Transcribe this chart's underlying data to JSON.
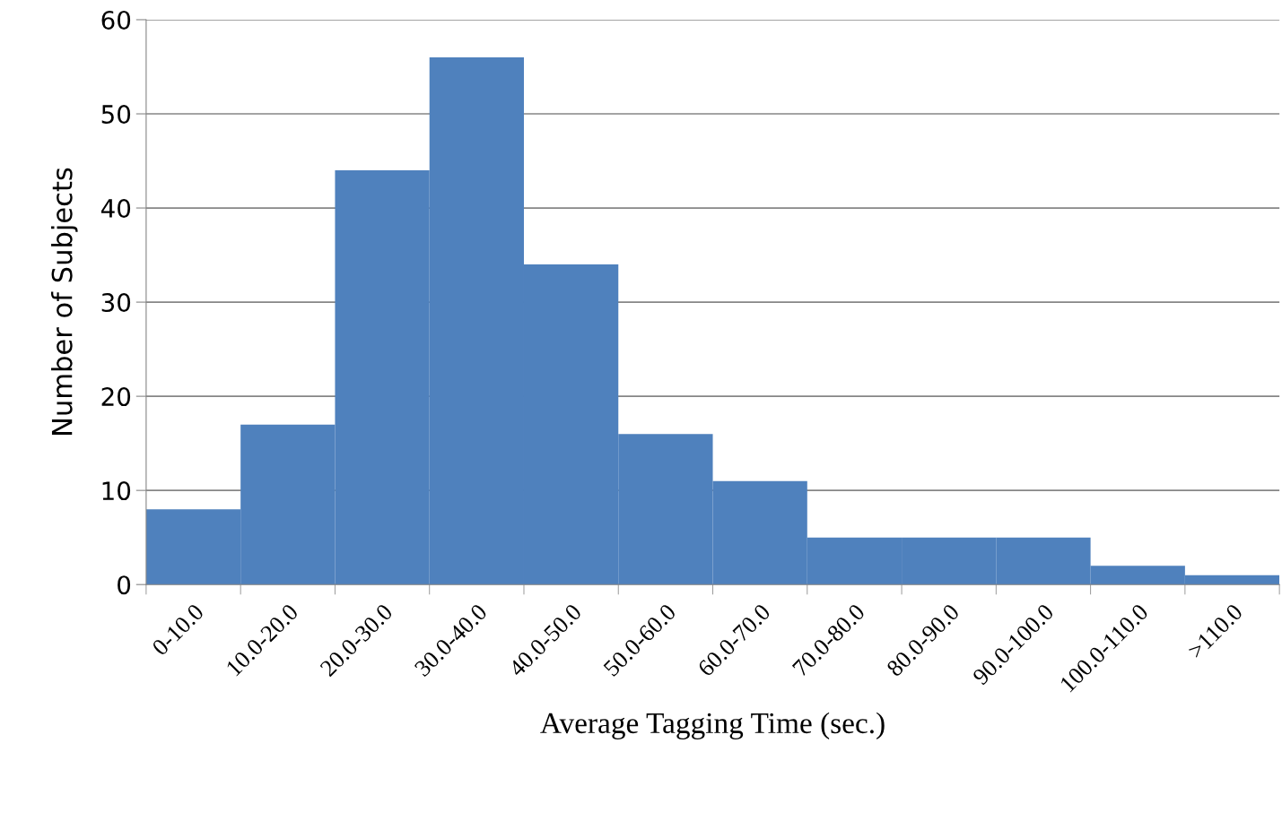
{
  "chart_data": {
    "type": "bar",
    "xlabel": "Average Tagging Time (sec.)",
    "ylabel": "Number of Subjects",
    "categories": [
      "0-10.0",
      "10.0-20.0",
      "20.0-30.0",
      "30.0-40.0",
      "40.0-50.0",
      "50.0-60.0",
      "60.0-70.0",
      "70.0-80.0",
      "80.0-90.0",
      "90.0-100.0",
      "100.0-110.0",
      ">110.0"
    ],
    "values": [
      8,
      17,
      44,
      56,
      34,
      16,
      11,
      5,
      5,
      5,
      2,
      1
    ],
    "color": "#4f81bd",
    "ylim": [
      0,
      60
    ],
    "yticks": [
      0,
      10,
      20,
      30,
      40,
      50,
      60
    ],
    "grid": "y",
    "legend": false
  }
}
